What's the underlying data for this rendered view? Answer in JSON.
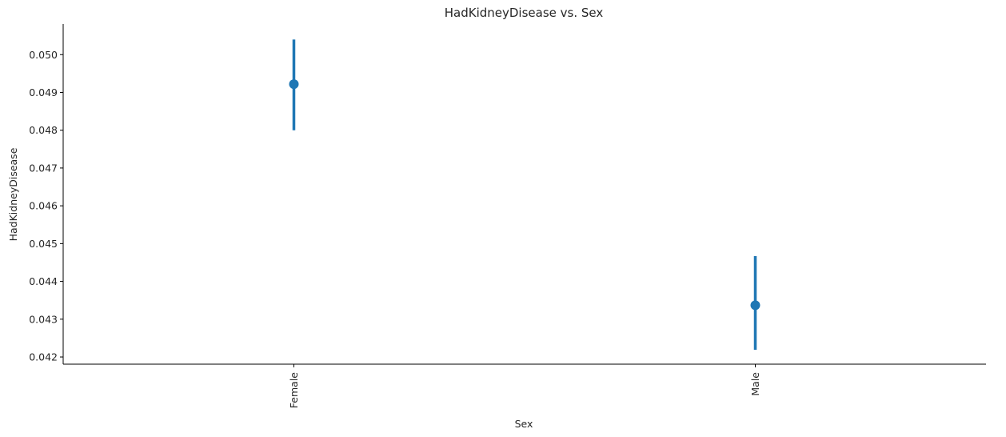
{
  "chart_data": {
    "type": "point",
    "title": "HadKidneyDisease vs. Sex",
    "xlabel": "Sex",
    "ylabel": "HadKidneyDisease",
    "categories": [
      "Female",
      "Male"
    ],
    "values": [
      0.04922,
      0.04337
    ],
    "ci_low": [
      0.048,
      0.04219
    ],
    "ci_high": [
      0.0504,
      0.04467
    ],
    "ylim": [
      0.04181,
      0.05081
    ],
    "yticks": [
      0.042,
      0.043,
      0.044,
      0.045,
      0.046,
      0.047,
      0.048,
      0.049,
      0.05
    ],
    "ytick_labels": [
      "0.042",
      "0.043",
      "0.044",
      "0.045",
      "0.046",
      "0.047",
      "0.048",
      "0.049",
      "0.050"
    ],
    "color": "#1f77b4",
    "grid": false
  }
}
